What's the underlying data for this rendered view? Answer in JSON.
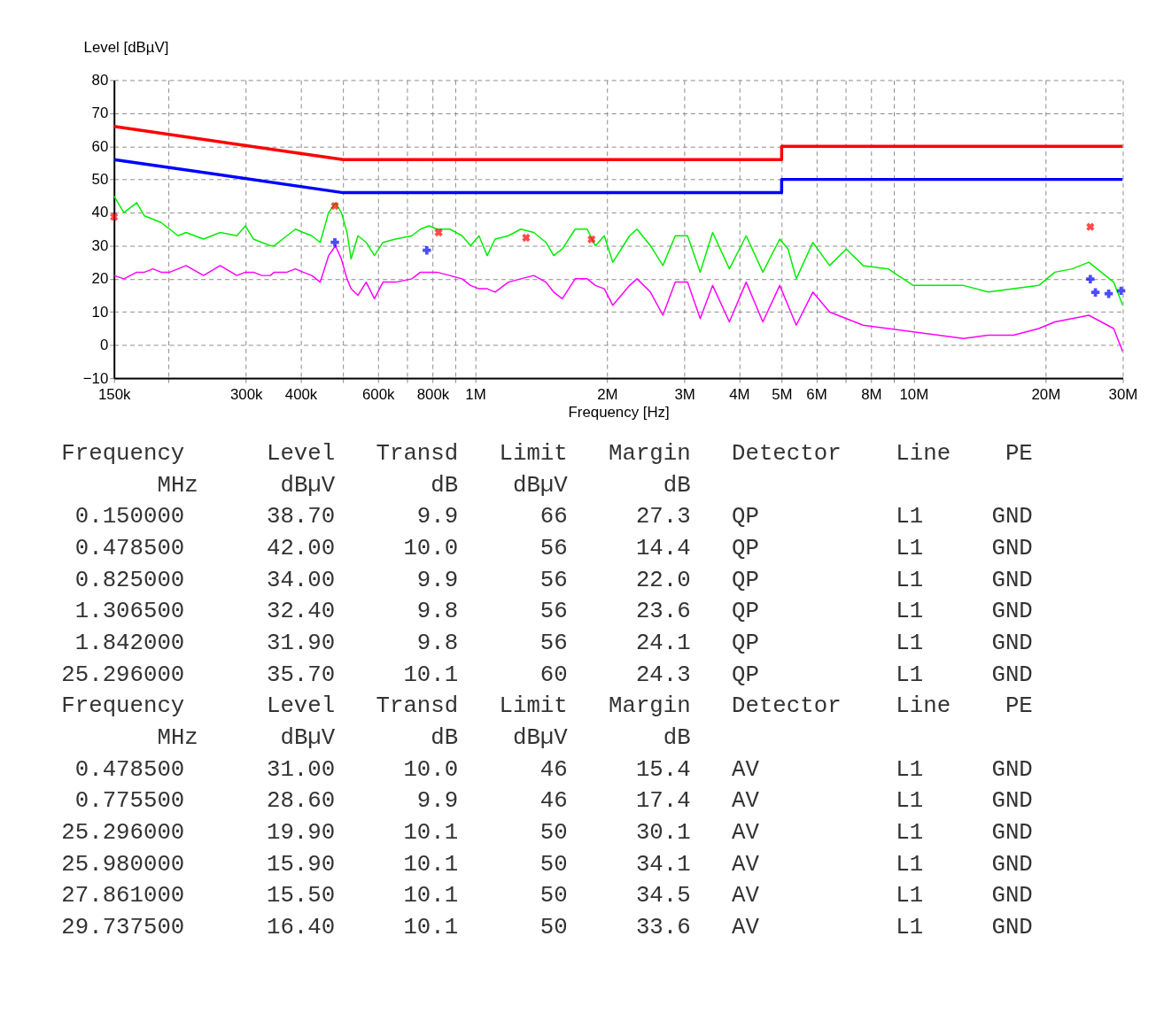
{
  "chart_data": {
    "type": "line",
    "xlabel": "Frequency [Hz]",
    "ylabel": "Level [dBµV]",
    "x": [
      150000,
      158000,
      169000,
      176000,
      184000,
      192000,
      201000,
      210000,
      219000,
      240000,
      262000,
      286000,
      299000,
      312000,
      326000,
      341000,
      348000,
      372000,
      389000,
      405000,
      424000,
      443000,
      463000,
      480000,
      495000,
      510000,
      521000,
      540000,
      564000,
      589000,
      616000,
      658000,
      717000,
      750000,
      784000,
      818000,
      875000,
      933000,
      976000,
      1020000,
      1065000,
      1110000,
      1190000,
      1270000,
      1360000,
      1450000,
      1510000,
      1580000,
      1690000,
      1800000,
      1880000,
      1970000,
      2060000,
      2250000,
      2340000,
      2510000,
      2680000,
      2860000,
      3050000,
      3260000,
      3480000,
      3800000,
      4150000,
      4530000,
      4950000,
      5170000,
      5400000,
      5890000,
      6430000,
      7020000,
      7670000,
      8750000,
      9980000,
      11400000,
      13000000,
      14800000,
      16900000,
      19300000,
      21000000,
      23000000,
      25100000,
      26800000,
      28600000,
      30000000
    ],
    "series": [
      {
        "color": "#00ee00",
        "values": [
          45,
          40,
          43,
          39,
          38,
          37,
          35,
          33,
          34,
          32,
          34,
          33,
          36,
          32,
          31,
          30,
          30,
          33,
          35,
          34,
          33,
          31,
          40,
          43,
          40,
          34,
          26,
          33,
          31,
          27,
          31,
          32,
          33,
          35,
          36,
          35,
          35,
          33,
          30,
          33,
          27,
          32,
          33,
          35,
          34,
          31,
          27,
          29,
          35,
          35,
          30,
          33,
          25,
          33,
          35,
          30,
          24,
          33,
          33,
          22,
          34,
          23,
          33,
          22,
          32,
          29,
          20,
          31,
          24,
          29,
          24,
          23,
          18,
          18,
          18,
          16,
          17,
          18,
          22,
          23,
          25,
          22,
          19,
          12
        ]
      },
      {
        "color": "#ff00ff",
        "values": [
          21,
          20,
          22,
          22,
          23,
          22,
          22,
          23,
          24,
          21,
          24,
          21,
          22,
          22,
          21,
          21,
          22,
          22,
          23,
          22,
          21,
          19,
          27,
          30,
          26,
          20,
          17,
          15,
          19,
          14,
          19,
          19,
          20,
          22,
          22,
          22,
          21,
          20,
          18,
          17,
          17,
          16,
          19,
          20,
          21,
          19,
          16,
          14,
          20,
          20,
          18,
          17,
          12,
          18,
          20,
          16,
          9,
          19,
          19,
          8,
          18,
          7,
          19,
          7,
          18,
          12,
          6,
          16,
          10,
          8,
          6,
          5,
          4,
          3,
          2,
          3,
          3,
          5,
          7,
          8,
          9,
          7,
          5,
          -2
        ]
      },
      {
        "color": "#ff0000",
        "x": [
          150000,
          500000,
          5000000,
          5000000,
          30000000
        ],
        "values": [
          66,
          56,
          56,
          60,
          60
        ]
      },
      {
        "color": "#0000ff",
        "x": [
          150000,
          500000,
          5000000,
          5000000,
          30000000
        ],
        "values": [
          56,
          46,
          46,
          50,
          50
        ]
      },
      {
        "type": "scatter",
        "marker": "cross",
        "color": "#ff0000",
        "x": [
          150000,
          478500,
          825000,
          1306500,
          1842000,
          25296000
        ],
        "values": [
          38.7,
          42.0,
          34.0,
          32.4,
          31.9,
          35.7
        ]
      },
      {
        "type": "scatter",
        "marker": "cross",
        "color": "#0000ff",
        "x": [
          478500,
          775500,
          25296000,
          25980000,
          27861000,
          29737500
        ],
        "values": [
          31.0,
          28.6,
          19.9,
          15.9,
          15.5,
          16.4
        ]
      }
    ],
    "log": "x",
    "grid": true,
    "line_style": "solid",
    "xlim": [
      150000,
      30000000
    ],
    "xticks": [
      {
        "value": 150000,
        "label": "150k"
      },
      {
        "value": 200000,
        "label": null
      },
      {
        "value": 300000,
        "label": "300k"
      },
      {
        "value": 400000,
        "label": "400k"
      },
      {
        "value": 500000,
        "label": null
      },
      {
        "value": 600000,
        "label": "600k"
      },
      {
        "value": 700000,
        "label": null
      },
      {
        "value": 800000,
        "label": "800k"
      },
      {
        "value": 900000,
        "label": null
      },
      {
        "value": 1000000,
        "label": "1M"
      },
      {
        "value": 2000000,
        "label": "2M"
      },
      {
        "value": 3000000,
        "label": "3M"
      },
      {
        "value": 4000000,
        "label": "4M"
      },
      {
        "value": 5000000,
        "label": "5M"
      },
      {
        "value": 6000000,
        "label": "6M"
      },
      {
        "value": 7000000,
        "label": null
      },
      {
        "value": 8000000,
        "label": "8M"
      },
      {
        "value": 9000000,
        "label": null
      },
      {
        "value": 10000000,
        "label": "10M"
      },
      {
        "value": 20000000,
        "label": "20M"
      },
      {
        "value": 30000000,
        "label": "30M"
      }
    ],
    "ylim": [
      -10,
      80
    ],
    "yticks": [
      -10,
      0,
      10,
      20,
      30,
      40,
      50,
      60,
      70,
      80
    ],
    "annotations": [
      "Frequency      Level   Transd   Limit   Margin   Detector    Line    PE",
      "       MHz      dBµV       dB    dBµV       dB",
      " 0.150000      38.70      9.9      66     27.3   QP          L1     GND",
      " 0.478500      42.00     10.0      56     14.4   QP          L1     GND",
      " 0.825000      34.00      9.9      56     22.0   QP          L1     GND",
      " 1.306500      32.40      9.8      56     23.6   QP          L1     GND",
      " 1.842000      31.90      9.8      56     24.1   QP          L1     GND",
      "25.296000      35.70     10.1      60     24.3   QP          L1     GND",
      "Frequency      Level   Transd   Limit   Margin   Detector    Line    PE",
      "       MHz      dBµV       dB    dBµV       dB",
      " 0.478500      31.00     10.0      46     15.4   AV          L1     GND",
      " 0.775500      28.60      9.9      46     17.4   AV          L1     GND",
      "25.296000      19.90     10.1      50     30.1   AV          L1     GND",
      "25.980000      15.90     10.1      50     34.1   AV          L1     GND",
      "27.861000      15.50     10.1      50     34.5   AV          L1     GND",
      "29.737500      16.40     10.1      50     33.6   AV          L1     GND"
    ]
  }
}
